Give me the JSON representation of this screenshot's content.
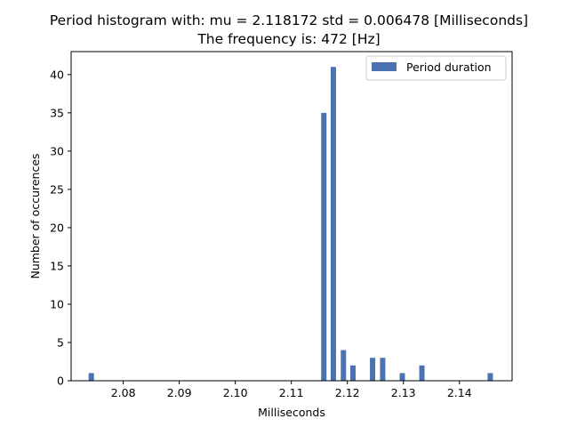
{
  "chart_data": {
    "type": "bar",
    "title": "Period histogram with: mu = 2.118172  std = 0.006478 [Milliseconds]",
    "subtitle": "The frequency is: 472 [Hz]",
    "xlabel": "Milliseconds",
    "ylabel": "Number of occurences",
    "xlim": [
      2.0707,
      2.1494
    ],
    "ylim": [
      0,
      43
    ],
    "xticks": [
      2.08,
      2.09,
      2.1,
      2.11,
      2.12,
      2.13,
      2.14
    ],
    "xtick_labels": [
      "2.08",
      "2.09",
      "2.10",
      "2.11",
      "2.12",
      "2.13",
      "2.14"
    ],
    "yticks": [
      0,
      5,
      10,
      15,
      20,
      25,
      30,
      35,
      40
    ],
    "ytick_labels": [
      "0",
      "5",
      "10",
      "15",
      "20",
      "25",
      "30",
      "35",
      "40"
    ],
    "grid": false,
    "legend": {
      "placement": "top-right",
      "entries": [
        "Period duration"
      ]
    },
    "bar_color": "#4c72b0",
    "bar_width": 0.00095,
    "series": [
      {
        "name": "Period duration",
        "x": [
          2.0743,
          2.1158,
          2.1175,
          2.1193,
          2.121,
          2.1245,
          2.1263,
          2.1298,
          2.1333,
          2.1455
        ],
        "values": [
          1,
          35,
          41,
          4,
          2,
          3,
          3,
          1,
          2,
          1
        ]
      }
    ]
  }
}
